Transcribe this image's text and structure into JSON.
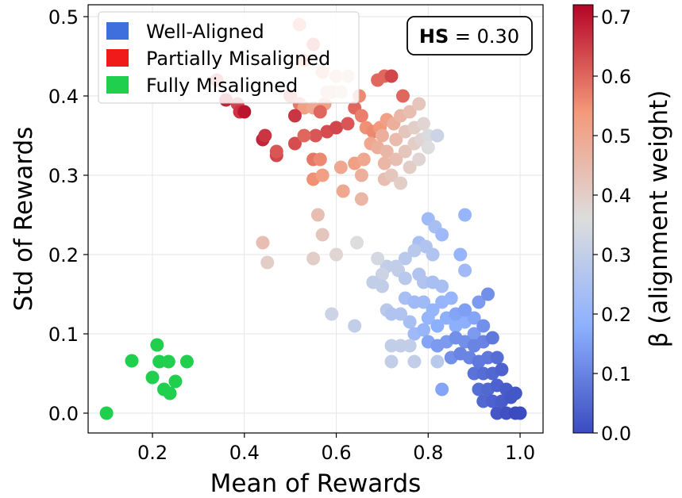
{
  "chart_data": {
    "type": "scatter",
    "xlabel": "Mean of Rewards",
    "ylabel": "Std of Rewards",
    "xlim": [
      0.06,
      1.05
    ],
    "ylim": [
      -0.025,
      0.515
    ],
    "xticks": [
      "0.2",
      "0.4",
      "0.6",
      "0.8",
      "1.0"
    ],
    "yticks": [
      "0.0",
      "0.1",
      "0.2",
      "0.3",
      "0.4",
      "0.5"
    ],
    "grid": true,
    "legend_position": "top-left",
    "legend": [
      {
        "label": "Well-Aligned",
        "color": "#3e6fdc"
      },
      {
        "label": "Partially Misaligned",
        "color": "#f01a1a"
      },
      {
        "label": "Fully Misaligned",
        "color": "#1fcf4d"
      }
    ],
    "annotation": {
      "bold": "HS",
      "rest": " = 0.30",
      "position": "top-right"
    },
    "colorbar": {
      "label": "β (alignment weight)",
      "colormap": "coolwarm",
      "range": [
        0.0,
        0.72
      ],
      "ticks": [
        "0.0",
        "0.1",
        "0.2",
        "0.3",
        "0.4",
        "0.5",
        "0.6",
        "0.7"
      ]
    },
    "series": [
      {
        "name": "Fully Misaligned",
        "color": "#1fcf4d",
        "points": [
          [
            0.1,
            0.0
          ],
          [
            0.155,
            0.066
          ],
          [
            0.2,
            0.045
          ],
          [
            0.21,
            0.086
          ],
          [
            0.215,
            0.065
          ],
          [
            0.225,
            0.03
          ],
          [
            0.235,
            0.065
          ],
          [
            0.238,
            0.025
          ],
          [
            0.25,
            0.04
          ],
          [
            0.275,
            0.065
          ]
        ]
      },
      {
        "name": "Partially Misaligned",
        "points": [
          [
            0.52,
            0.49,
            0.55
          ],
          [
            0.55,
            0.465,
            0.6
          ],
          [
            0.34,
            0.42,
            0.62
          ],
          [
            0.36,
            0.395,
            0.68
          ],
          [
            0.385,
            0.39,
            0.64
          ],
          [
            0.39,
            0.38,
            0.66
          ],
          [
            0.53,
            0.445,
            0.55
          ],
          [
            0.57,
            0.43,
            0.5
          ],
          [
            0.6,
            0.425,
            0.45
          ],
          [
            0.625,
            0.425,
            0.42
          ],
          [
            0.59,
            0.405,
            0.47
          ],
          [
            0.61,
            0.405,
            0.42
          ],
          [
            0.5,
            0.4,
            0.6
          ],
          [
            0.52,
            0.39,
            0.58
          ],
          [
            0.53,
            0.385,
            0.52
          ],
          [
            0.55,
            0.385,
            0.5
          ],
          [
            0.575,
            0.39,
            0.52
          ],
          [
            0.58,
            0.405,
            0.45
          ],
          [
            0.51,
            0.375,
            0.66
          ],
          [
            0.565,
            0.38,
            0.6
          ],
          [
            0.64,
            0.385,
            0.6
          ],
          [
            0.65,
            0.4,
            0.56
          ],
          [
            0.69,
            0.42,
            0.6
          ],
          [
            0.705,
            0.425,
            0.6
          ],
          [
            0.72,
            0.425,
            0.64
          ],
          [
            0.745,
            0.4,
            0.6
          ],
          [
            0.555,
            0.35,
            0.62
          ],
          [
            0.58,
            0.355,
            0.63
          ],
          [
            0.6,
            0.36,
            0.64
          ],
          [
            0.625,
            0.365,
            0.62
          ],
          [
            0.655,
            0.375,
            0.57
          ],
          [
            0.665,
            0.36,
            0.55
          ],
          [
            0.68,
            0.355,
            0.56
          ],
          [
            0.695,
            0.36,
            0.54
          ],
          [
            0.71,
            0.37,
            0.52
          ],
          [
            0.675,
            0.34,
            0.5
          ],
          [
            0.69,
            0.335,
            0.48
          ],
          [
            0.7,
            0.35,
            0.48
          ],
          [
            0.725,
            0.365,
            0.48
          ],
          [
            0.74,
            0.375,
            0.46
          ],
          [
            0.76,
            0.38,
            0.44
          ],
          [
            0.78,
            0.39,
            0.42
          ],
          [
            0.73,
            0.345,
            0.45
          ],
          [
            0.75,
            0.355,
            0.42
          ],
          [
            0.77,
            0.36,
            0.4
          ],
          [
            0.79,
            0.365,
            0.38
          ],
          [
            0.71,
            0.33,
            0.46
          ],
          [
            0.73,
            0.32,
            0.44
          ],
          [
            0.75,
            0.33,
            0.42
          ],
          [
            0.77,
            0.34,
            0.4
          ],
          [
            0.785,
            0.345,
            0.38
          ],
          [
            0.8,
            0.35,
            0.35
          ],
          [
            0.82,
            0.35,
            0.32
          ],
          [
            0.76,
            0.31,
            0.4
          ],
          [
            0.78,
            0.32,
            0.38
          ],
          [
            0.8,
            0.335,
            0.36
          ],
          [
            0.705,
            0.315,
            0.46
          ],
          [
            0.705,
            0.295,
            0.44
          ],
          [
            0.72,
            0.3,
            0.42
          ],
          [
            0.74,
            0.29,
            0.4
          ],
          [
            0.44,
            0.345,
            0.68
          ],
          [
            0.445,
            0.35,
            0.66
          ],
          [
            0.47,
            0.325,
            0.64
          ],
          [
            0.47,
            0.33,
            0.62
          ],
          [
            0.51,
            0.34,
            0.63
          ],
          [
            0.53,
            0.35,
            0.6
          ],
          [
            0.55,
            0.32,
            0.58
          ],
          [
            0.565,
            0.32,
            0.56
          ],
          [
            0.55,
            0.295,
            0.55
          ],
          [
            0.57,
            0.3,
            0.52
          ],
          [
            0.61,
            0.31,
            0.5
          ],
          [
            0.64,
            0.315,
            0.52
          ],
          [
            0.66,
            0.32,
            0.5
          ],
          [
            0.655,
            0.3,
            0.48
          ],
          [
            0.615,
            0.28,
            0.5
          ],
          [
            0.655,
            0.27,
            0.46
          ],
          [
            0.56,
            0.25,
            0.44
          ],
          [
            0.57,
            0.225,
            0.42
          ],
          [
            0.55,
            0.195,
            0.4
          ],
          [
            0.6,
            0.2,
            0.38
          ],
          [
            0.645,
            0.215,
            0.36
          ],
          [
            0.44,
            0.215,
            0.44
          ],
          [
            0.45,
            0.19,
            0.4
          ],
          [
            0.4,
            0.38,
            0.7
          ]
        ]
      },
      {
        "name": "Well-Aligned",
        "points": [
          [
            0.88,
            0.25,
            0.2
          ],
          [
            0.8,
            0.245,
            0.22
          ],
          [
            0.815,
            0.235,
            0.24
          ],
          [
            0.83,
            0.225,
            0.22
          ],
          [
            0.78,
            0.215,
            0.24
          ],
          [
            0.795,
            0.21,
            0.26
          ],
          [
            0.81,
            0.2,
            0.26
          ],
          [
            0.77,
            0.205,
            0.28
          ],
          [
            0.75,
            0.195,
            0.28
          ],
          [
            0.73,
            0.185,
            0.3
          ],
          [
            0.71,
            0.185,
            0.3
          ],
          [
            0.69,
            0.195,
            0.34
          ],
          [
            0.7,
            0.175,
            0.32
          ],
          [
            0.735,
            0.18,
            0.3
          ],
          [
            0.75,
            0.17,
            0.28
          ],
          [
            0.78,
            0.175,
            0.26
          ],
          [
            0.79,
            0.165,
            0.26
          ],
          [
            0.81,
            0.165,
            0.24
          ],
          [
            0.83,
            0.16,
            0.24
          ],
          [
            0.87,
            0.2,
            0.2
          ],
          [
            0.88,
            0.18,
            0.22
          ],
          [
            0.68,
            0.165,
            0.3
          ],
          [
            0.7,
            0.16,
            0.3
          ],
          [
            0.75,
            0.145,
            0.24
          ],
          [
            0.77,
            0.14,
            0.22
          ],
          [
            0.79,
            0.14,
            0.22
          ],
          [
            0.81,
            0.13,
            0.2
          ],
          [
            0.83,
            0.14,
            0.2
          ],
          [
            0.85,
            0.145,
            0.2
          ],
          [
            0.86,
            0.11,
            0.18
          ],
          [
            0.88,
            0.115,
            0.18
          ],
          [
            0.9,
            0.12,
            0.16
          ],
          [
            0.91,
            0.14,
            0.14
          ],
          [
            0.93,
            0.15,
            0.12
          ],
          [
            0.76,
            0.115,
            0.24
          ],
          [
            0.77,
            0.1,
            0.22
          ],
          [
            0.79,
            0.105,
            0.2
          ],
          [
            0.8,
            0.12,
            0.2
          ],
          [
            0.82,
            0.11,
            0.18
          ],
          [
            0.84,
            0.12,
            0.18
          ],
          [
            0.86,
            0.125,
            0.16
          ],
          [
            0.88,
            0.13,
            0.15
          ],
          [
            0.9,
            0.1,
            0.14
          ],
          [
            0.92,
            0.11,
            0.12
          ],
          [
            0.8,
            0.09,
            0.16
          ],
          [
            0.82,
            0.085,
            0.14
          ],
          [
            0.84,
            0.09,
            0.14
          ],
          [
            0.86,
            0.095,
            0.12
          ],
          [
            0.88,
            0.09,
            0.12
          ],
          [
            0.9,
            0.085,
            0.1
          ],
          [
            0.92,
            0.09,
            0.1
          ],
          [
            0.94,
            0.095,
            0.08
          ],
          [
            0.85,
            0.07,
            0.12
          ],
          [
            0.87,
            0.075,
            0.1
          ],
          [
            0.89,
            0.07,
            0.1
          ],
          [
            0.91,
            0.065,
            0.08
          ],
          [
            0.93,
            0.07,
            0.08
          ],
          [
            0.95,
            0.07,
            0.06
          ],
          [
            0.9,
            0.05,
            0.07
          ],
          [
            0.92,
            0.05,
            0.06
          ],
          [
            0.94,
            0.05,
            0.05
          ],
          [
            0.96,
            0.055,
            0.04
          ],
          [
            0.91,
            0.03,
            0.06
          ],
          [
            0.93,
            0.03,
            0.05
          ],
          [
            0.95,
            0.035,
            0.04
          ],
          [
            0.97,
            0.03,
            0.03
          ],
          [
            0.99,
            0.025,
            0.02
          ],
          [
            0.92,
            0.015,
            0.05
          ],
          [
            0.94,
            0.015,
            0.04
          ],
          [
            0.96,
            0.015,
            0.03
          ],
          [
            0.98,
            0.02,
            0.02
          ],
          [
            0.95,
            0.0,
            0.02
          ],
          [
            0.97,
            0.0,
            0.01
          ],
          [
            0.99,
            0.0,
            0.0
          ],
          [
            1.0,
            0.0,
            0.0
          ],
          [
            0.72,
            0.085,
            0.3
          ],
          [
            0.74,
            0.085,
            0.3
          ],
          [
            0.76,
            0.085,
            0.3
          ],
          [
            0.72,
            0.065,
            0.3
          ],
          [
            0.77,
            0.065,
            0.3
          ],
          [
            0.82,
            0.065,
            0.28
          ],
          [
            0.83,
            0.03,
            0.16
          ],
          [
            0.59,
            0.125,
            0.32
          ],
          [
            0.64,
            0.11,
            0.3
          ],
          [
            0.71,
            0.13,
            0.28
          ],
          [
            0.74,
            0.125,
            0.26
          ],
          [
            0.72,
            0.125,
            0.26
          ]
        ]
      }
    ]
  }
}
